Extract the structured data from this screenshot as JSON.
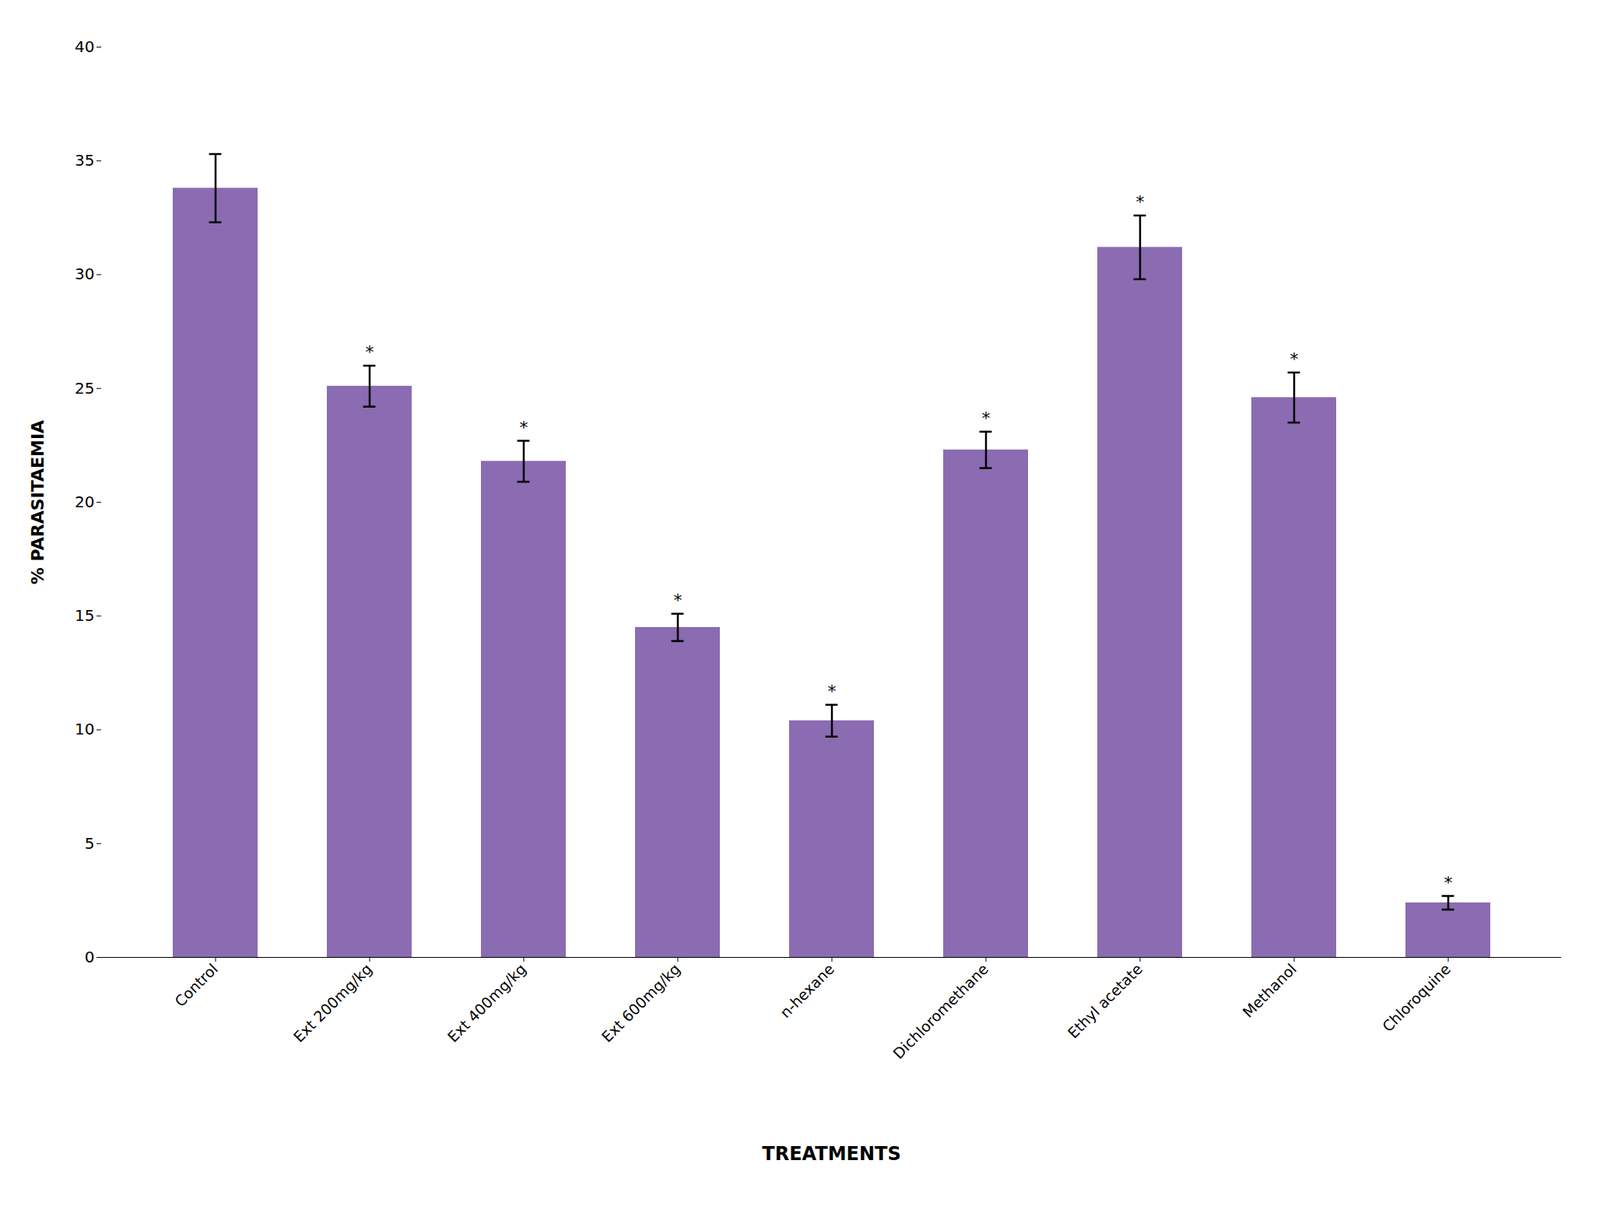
{
  "chart_data": {
    "type": "bar",
    "categories": [
      "Control",
      "Ext 200mg/kg",
      "Ext 400mg/kg",
      "Ext 600mg/kg",
      "n-hexane",
      "Dichloromethane",
      "Ethyl acetate",
      "Methanol",
      "Chloroquine"
    ],
    "values": [
      33.8,
      25.1,
      21.8,
      14.5,
      10.4,
      22.3,
      31.2,
      24.6,
      2.4
    ],
    "errors": [
      1.5,
      0.9,
      0.9,
      0.6,
      0.7,
      0.8,
      1.4,
      1.1,
      0.3
    ],
    "color": "#8B6BB1",
    "ylabel": "% PARASITAEMIA",
    "xlabel": "TREATMENTS",
    "ylim": [
      0,
      40
    ],
    "yticks": [
      0,
      5,
      10,
      15,
      20,
      25,
      30,
      35,
      40
    ],
    "annotations": [
      {
        "category": "Ext 200mg/kg",
        "text": "*"
      },
      {
        "category": "Ext 400mg/kg",
        "text": "*"
      },
      {
        "category": "Ext 600mg/kg",
        "text": "*"
      },
      {
        "category": "n-hexane",
        "text": "*"
      },
      {
        "category": "Dichloromethane",
        "text": "*"
      },
      {
        "category": "Ethyl acetate",
        "text": "*"
      },
      {
        "category": "Methanol",
        "text": "*"
      },
      {
        "category": "Chloroquine",
        "text": "*"
      }
    ],
    "grid": false
  }
}
